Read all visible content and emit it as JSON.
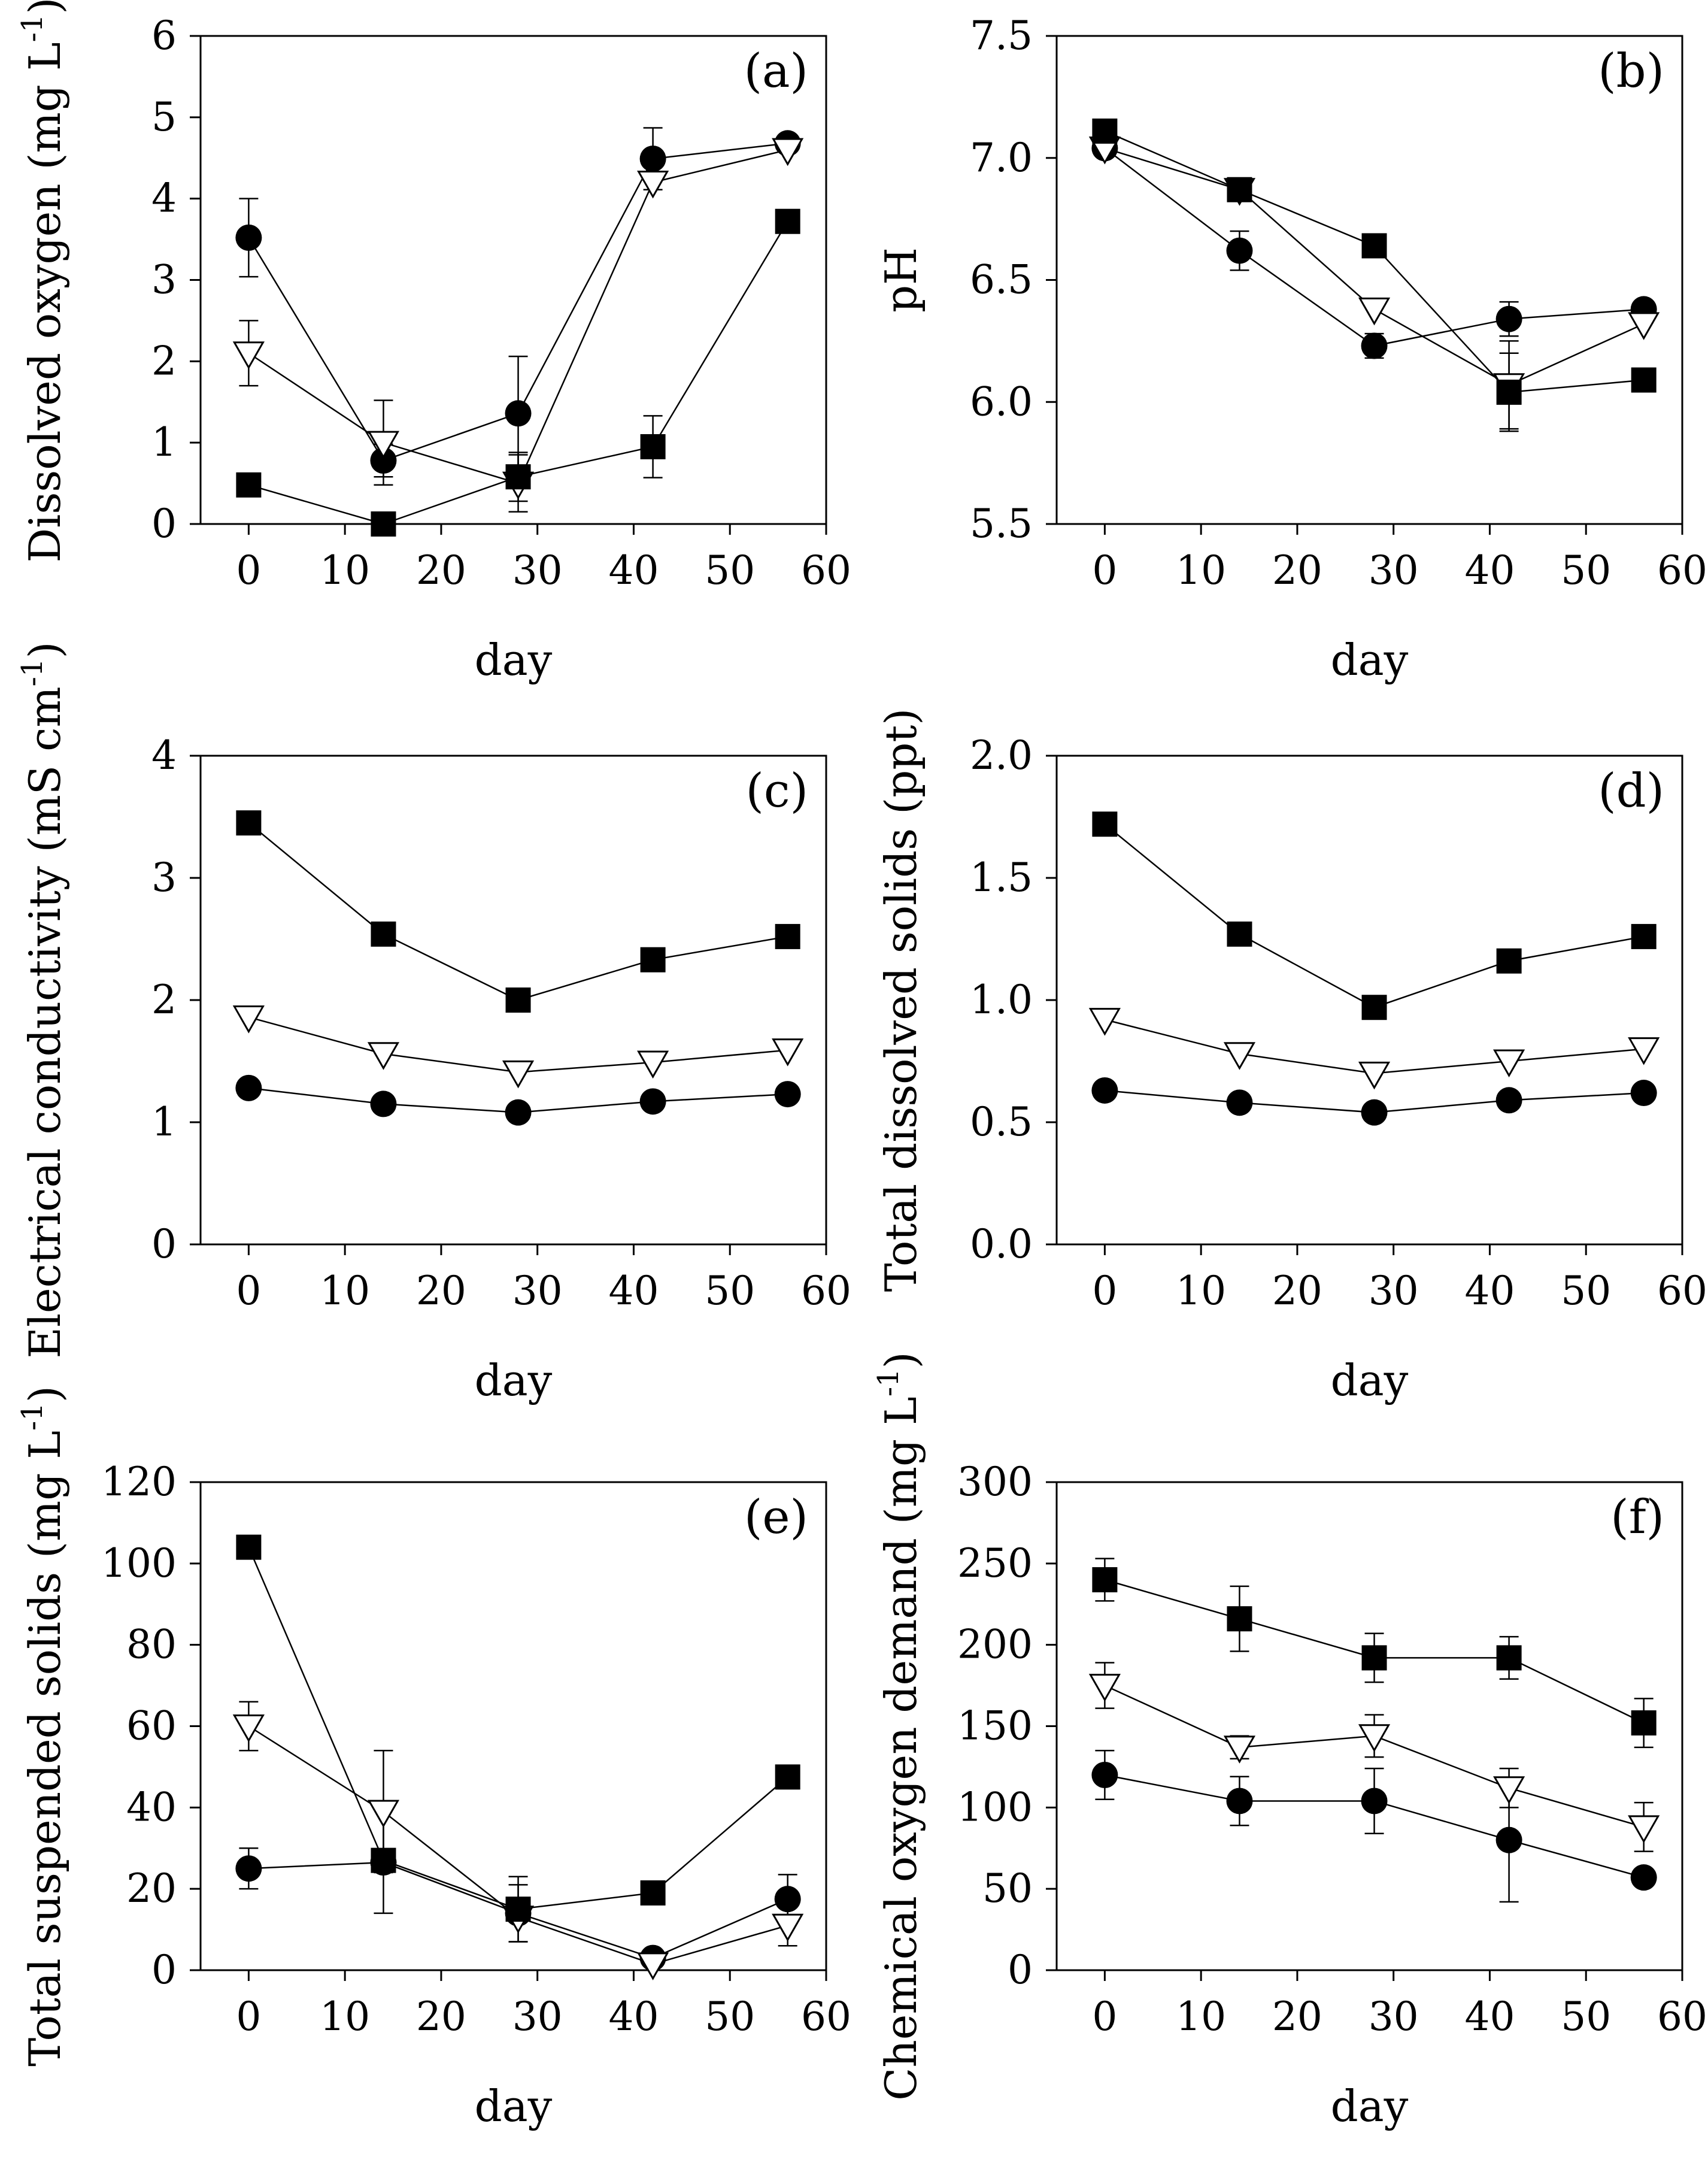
{
  "chart_data": [
    {
      "type": "scatter",
      "panel": "(a)",
      "ylabel": "Dissolved oxygen (mg L",
      "ylabel_sup": "-1",
      "ylabel_tail": ")",
      "xlabel": "day",
      "ylim": [
        0,
        6
      ],
      "yticks": [
        "0",
        "1",
        "2",
        "3",
        "4",
        "5",
        "6"
      ],
      "yticks_values": [
        0,
        1,
        2,
        3,
        4,
        5,
        6
      ],
      "xlim": [
        -5,
        60
      ],
      "xticks": [
        "0",
        "10",
        "20",
        "30",
        "40",
        "50",
        "60"
      ],
      "xticks_values": [
        0,
        10,
        20,
        30,
        40,
        50,
        60
      ],
      "x": [
        0,
        14,
        28,
        42,
        56
      ],
      "series": [
        {
          "marker": "circle",
          "values": [
            3.52,
            0.78,
            1.36,
            4.49,
            4.68
          ],
          "errors": [
            0.48,
            0.2,
            0.7,
            0.38,
            0
          ]
        },
        {
          "marker": "triangle-open",
          "values": [
            2.1,
            1.0,
            0.5,
            4.2,
            4.6
          ],
          "errors": [
            0.4,
            0.52,
            0.35,
            0,
            0
          ]
        },
        {
          "marker": "square",
          "values": [
            0.48,
            0.0,
            0.58,
            0.95,
            3.72
          ],
          "errors": [
            0,
            0,
            0.3,
            0.38,
            0
          ]
        }
      ]
    },
    {
      "type": "scatter",
      "panel": "(b)",
      "ylabel": "pH",
      "ylabel_sup": "",
      "ylabel_tail": "",
      "xlabel": "day",
      "ylim": [
        5.5,
        7.5
      ],
      "yticks": [
        "5.5",
        "6.0",
        "6.5",
        "7.0",
        "7.5"
      ],
      "yticks_values": [
        5.5,
        6.0,
        6.5,
        7.0,
        7.5
      ],
      "xlim": [
        -5,
        60
      ],
      "xticks": [
        "0",
        "10",
        "20",
        "30",
        "40",
        "50",
        "60"
      ],
      "xticks_values": [
        0,
        10,
        20,
        30,
        40,
        50,
        60
      ],
      "x": [
        0,
        14,
        28,
        42,
        56
      ],
      "series": [
        {
          "marker": "circle",
          "values": [
            7.04,
            6.62,
            6.23,
            6.34,
            6.38
          ],
          "errors": [
            0,
            0.08,
            0.05,
            0.07,
            0
          ]
        },
        {
          "marker": "triangle-open",
          "values": [
            7.04,
            6.87,
            6.38,
            6.07,
            6.32
          ],
          "errors": [
            0,
            0,
            0,
            0.18,
            0
          ]
        },
        {
          "marker": "square",
          "values": [
            7.11,
            6.87,
            6.64,
            6.04,
            6.09
          ],
          "errors": [
            0,
            0,
            0,
            0.16,
            0
          ]
        }
      ]
    },
    {
      "type": "scatter",
      "panel": "(c)",
      "ylabel": "Electrical conductivity (mS cm",
      "ylabel_sup": "-1",
      "ylabel_tail": ")",
      "xlabel": "day",
      "ylim": [
        0,
        4
      ],
      "yticks": [
        "0",
        "1",
        "2",
        "3",
        "4"
      ],
      "yticks_values": [
        0,
        1,
        2,
        3,
        4
      ],
      "xlim": [
        -5,
        60
      ],
      "xticks": [
        "0",
        "10",
        "20",
        "30",
        "40",
        "50",
        "60"
      ],
      "xticks_values": [
        0,
        10,
        20,
        30,
        40,
        50,
        60
      ],
      "x": [
        0,
        14,
        28,
        42,
        56
      ],
      "series": [
        {
          "marker": "circle",
          "values": [
            1.28,
            1.15,
            1.08,
            1.17,
            1.23
          ],
          "errors": [
            0,
            0,
            0,
            0,
            0
          ]
        },
        {
          "marker": "triangle-open",
          "values": [
            1.86,
            1.56,
            1.41,
            1.49,
            1.59
          ],
          "errors": [
            0,
            0,
            0,
            0,
            0
          ]
        },
        {
          "marker": "square",
          "values": [
            3.45,
            2.54,
            2.0,
            2.33,
            2.52
          ],
          "errors": [
            0,
            0,
            0,
            0,
            0
          ]
        }
      ]
    },
    {
      "type": "scatter",
      "panel": "(d)",
      "ylabel": "Total dissolved solids (ppt)",
      "ylabel_sup": "",
      "ylabel_tail": "",
      "xlabel": "day",
      "ylim": [
        0,
        2
      ],
      "yticks": [
        "0.0",
        "0.5",
        "1.0",
        "1.5",
        "2.0"
      ],
      "yticks_values": [
        0,
        0.5,
        1.0,
        1.5,
        2.0
      ],
      "xlim": [
        -5,
        60
      ],
      "xticks": [
        "0",
        "10",
        "20",
        "30",
        "40",
        "50",
        "60"
      ],
      "xticks_values": [
        0,
        10,
        20,
        30,
        40,
        50,
        60
      ],
      "x": [
        0,
        14,
        28,
        42,
        56
      ],
      "series": [
        {
          "marker": "circle",
          "values": [
            0.63,
            0.58,
            0.54,
            0.59,
            0.62
          ],
          "errors": [
            0,
            0,
            0,
            0,
            0
          ]
        },
        {
          "marker": "triangle-open",
          "values": [
            0.92,
            0.78,
            0.7,
            0.75,
            0.8
          ],
          "errors": [
            0,
            0,
            0,
            0,
            0
          ]
        },
        {
          "marker": "square",
          "values": [
            1.72,
            1.27,
            0.97,
            1.16,
            1.26
          ],
          "errors": [
            0,
            0,
            0,
            0,
            0
          ]
        }
      ]
    },
    {
      "type": "scatter",
      "panel": "(e)",
      "ylabel": "Total suspended solids (mg L",
      "ylabel_sup": "-1",
      "ylabel_tail": ")",
      "xlabel": "day",
      "ylim": [
        0,
        120
      ],
      "yticks": [
        "0",
        "20",
        "40",
        "60",
        "80",
        "100",
        "120"
      ],
      "yticks_values": [
        0,
        20,
        40,
        60,
        80,
        100,
        120
      ],
      "xlim": [
        -5,
        60
      ],
      "xticks": [
        "0",
        "10",
        "20",
        "30",
        "40",
        "50",
        "60"
      ],
      "xticks_values": [
        0,
        10,
        20,
        30,
        40,
        50,
        60
      ],
      "x": [
        0,
        14,
        28,
        42,
        56
      ],
      "series": [
        {
          "marker": "circle",
          "values": [
            25,
            26.5,
            14,
            3,
            17.5
          ],
          "errors": [
            5,
            0,
            7,
            0,
            6
          ]
        },
        {
          "marker": "triangle-open",
          "values": [
            60,
            39,
            13,
            1.5,
            11
          ],
          "errors": [
            6,
            15,
            0,
            0,
            5
          ]
        },
        {
          "marker": "square",
          "values": [
            104,
            27,
            15,
            19,
            47.5
          ],
          "errors": [
            0,
            13,
            8,
            0,
            0
          ]
        }
      ]
    },
    {
      "type": "scatter",
      "panel": "(f)",
      "ylabel": "Chemical oxygen demand (mg L",
      "ylabel_sup": "-1",
      "ylabel_tail": ")",
      "xlabel": "day",
      "ylim": [
        0,
        300
      ],
      "yticks": [
        "0",
        "50",
        "100",
        "150",
        "200",
        "250",
        "300"
      ],
      "yticks_values": [
        0,
        50,
        100,
        150,
        200,
        250,
        300
      ],
      "xlim": [
        -5,
        60
      ],
      "xticks": [
        "0",
        "10",
        "20",
        "30",
        "40",
        "50",
        "60"
      ],
      "xticks_values": [
        0,
        10,
        20,
        30,
        40,
        50,
        60
      ],
      "x": [
        0,
        14,
        28,
        42,
        56
      ],
      "series": [
        {
          "marker": "circle",
          "values": [
            120,
            104,
            104,
            80,
            57
          ],
          "errors": [
            15,
            15,
            20,
            38,
            0
          ]
        },
        {
          "marker": "triangle-open",
          "values": [
            175,
            137,
            144,
            112,
            88
          ],
          "errors": [
            14,
            7,
            13,
            12,
            15
          ]
        },
        {
          "marker": "square",
          "values": [
            240,
            216,
            192,
            192,
            152
          ],
          "errors": [
            13,
            20,
            15,
            13,
            15
          ]
        }
      ]
    }
  ]
}
